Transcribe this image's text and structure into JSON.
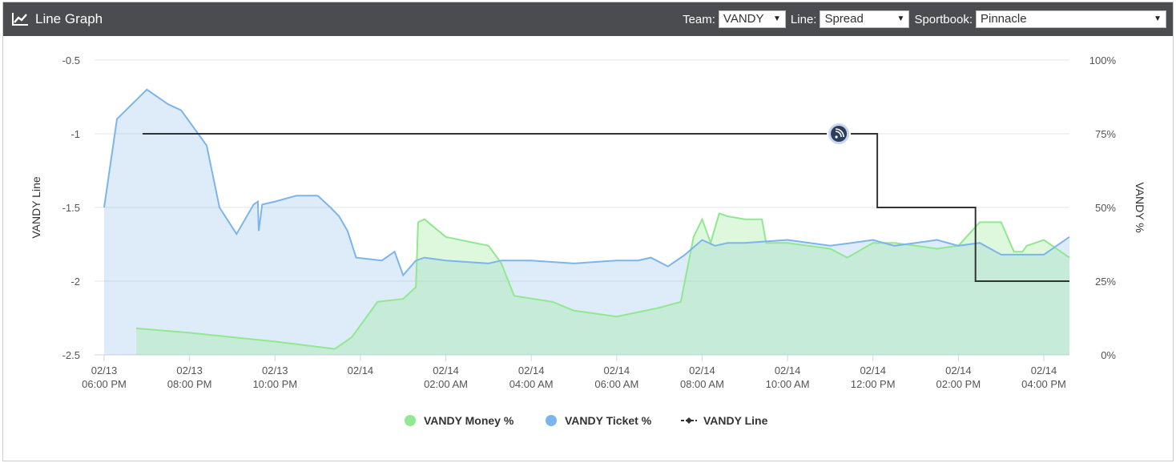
{
  "header": {
    "title": "Line Graph",
    "icon": "line-chart-icon",
    "team_label": "Team:",
    "team_value": "VANDY",
    "line_label": "Line:",
    "line_value": "Spread",
    "sportsbook_label": "Sportbook:",
    "sportsbook_value": "Pinnacle"
  },
  "colors": {
    "header_bg": "#4a4c50",
    "money": "#90e890",
    "ticket": "#7cb5ec",
    "line": "#333333"
  },
  "chart_data": {
    "type": "line",
    "x_tick_labels": [
      [
        "02/13",
        "06:00 PM"
      ],
      [
        "02/13",
        "08:00 PM"
      ],
      [
        "02/13",
        "10:00 PM"
      ],
      [
        "02/14",
        ""
      ],
      [
        "02/14",
        "02:00 AM"
      ],
      [
        "02/14",
        "04:00 AM"
      ],
      [
        "02/14",
        "06:00 AM"
      ],
      [
        "02/14",
        "08:00 AM"
      ],
      [
        "02/14",
        "10:00 AM"
      ],
      [
        "02/14",
        "12:00 PM"
      ],
      [
        "02/14",
        "02:00 PM"
      ],
      [
        "02/14",
        "04:00 PM"
      ]
    ],
    "xlim": [
      18.0,
      40.6
    ],
    "left_axis": {
      "label": "VANDY Line",
      "ticks": [
        "-0.5",
        "-1",
        "-1.5",
        "-2",
        "-2.5"
      ],
      "ylim": [
        -2.5,
        -0.5
      ]
    },
    "right_axis": {
      "label": "VANDY %",
      "ticks": [
        "100%",
        "75%",
        "50%",
        "25%",
        "0%"
      ],
      "ylim": [
        0,
        100
      ]
    },
    "grid": true,
    "legend_position": "bottom-center",
    "series": [
      {
        "name": "VANDY Money %",
        "axis": "right",
        "kind": "area",
        "x": [
          18.75,
          20.0,
          22.0,
          23.4,
          23.8,
          24.4,
          25.0,
          25.3,
          25.35,
          25.5,
          26.0,
          27.0,
          27.3,
          27.6,
          28.5,
          29.0,
          30.0,
          31.0,
          31.5,
          31.8,
          32.0,
          32.2,
          32.4,
          32.6,
          33.0,
          33.4,
          33.5,
          34.0,
          35.0,
          35.4,
          36.0,
          36.5,
          37.0,
          37.5,
          38.0,
          38.5,
          39.0,
          39.3,
          39.5,
          39.6,
          40.0,
          40.6
        ],
        "y": [
          9,
          7.5,
          4.5,
          2,
          6,
          18,
          19,
          23,
          45,
          46,
          40,
          37,
          31,
          20,
          18,
          15,
          13,
          16,
          18,
          40,
          46,
          38,
          48,
          47,
          46,
          46,
          38,
          38,
          36,
          33,
          38,
          38,
          37,
          36,
          37,
          45,
          45,
          35,
          35,
          37,
          39,
          33
        ]
      },
      {
        "name": "VANDY Ticket %",
        "axis": "right",
        "kind": "area",
        "x": [
          18.0,
          18.3,
          19.0,
          19.5,
          19.8,
          20.4,
          20.7,
          21.1,
          21.5,
          21.6,
          21.62,
          21.7,
          22.0,
          22.5,
          23.0,
          23.3,
          23.5,
          23.7,
          23.9,
          24.5,
          24.8,
          25.0,
          25.3,
          25.5,
          26.0,
          27.0,
          27.3,
          28.0,
          29.0,
          30.0,
          30.5,
          30.8,
          31.2,
          31.6,
          32.0,
          32.3,
          32.6,
          33.0,
          34.0,
          35.0,
          35.5,
          36.0,
          36.5,
          37.0,
          37.5,
          38.0,
          38.5,
          39.0,
          39.5,
          40.0,
          40.3,
          40.6
        ],
        "y": [
          50,
          80,
          90,
          85,
          83,
          71,
          50,
          41,
          51,
          52,
          42,
          51,
          52,
          54,
          54,
          50,
          47,
          42,
          33,
          32,
          35,
          27,
          32,
          33,
          32,
          31,
          32,
          32,
          31,
          32,
          32,
          33,
          30,
          34,
          39,
          37,
          38,
          38,
          39,
          37,
          38,
          39,
          37,
          38,
          39,
          37,
          38,
          34,
          34,
          34,
          37,
          40
        ]
      },
      {
        "name": "VANDY Line",
        "axis": "left",
        "kind": "step",
        "x": [
          18.9,
          36.1,
          36.1,
          38.4,
          38.4,
          40.6
        ],
        "y": [
          -1,
          -1,
          -1.5,
          -1.5,
          -2,
          -2
        ]
      }
    ]
  }
}
